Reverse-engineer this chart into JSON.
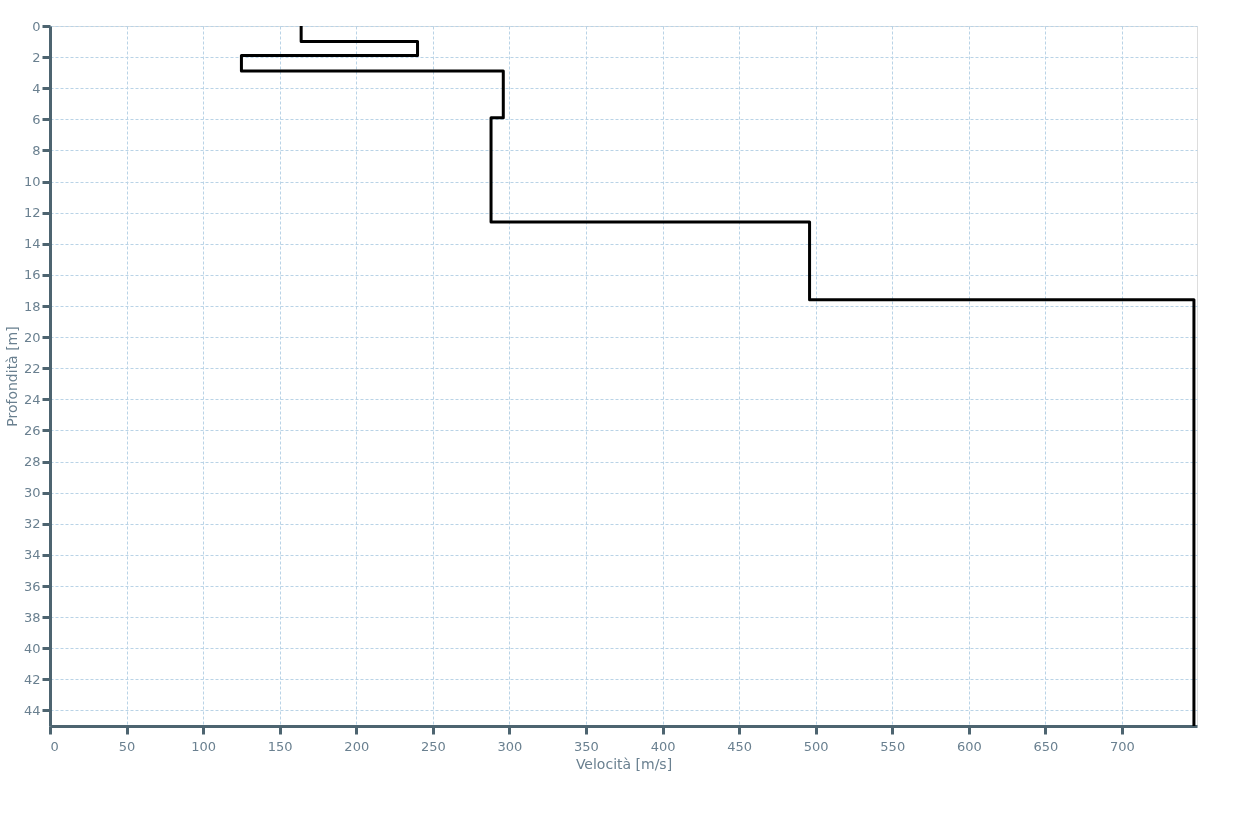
{
  "chart_data": {
    "type": "line",
    "xlabel": "Velocità [m/s]",
    "ylabel": "Profondità [m]",
    "xlim": [
      0,
      749
    ],
    "xticks": [
      0,
      50,
      100,
      150,
      200,
      250,
      300,
      350,
      400,
      450,
      500,
      550,
      600,
      650,
      700
    ],
    "ylim": [
      45,
      0
    ],
    "yticks": [
      0,
      2,
      4,
      6,
      8,
      10,
      12,
      14,
      16,
      18,
      20,
      22,
      24,
      26,
      28,
      30,
      32,
      34,
      36,
      38,
      40,
      42,
      44
    ],
    "grid": true,
    "line_style": "solid",
    "marker": "none",
    "series": [
      {
        "color": "#000000",
        "x": [
          164,
          164,
          240,
          240,
          125,
          125,
          296,
          296,
          288,
          288,
          496,
          496,
          747,
          747
        ],
        "values": [
          0,
          1.0,
          1.0,
          1.9,
          1.9,
          2.9,
          2.9,
          5.9,
          5.9,
          12.6,
          12.6,
          17.6,
          17.6,
          45
        ]
      }
    ]
  }
}
